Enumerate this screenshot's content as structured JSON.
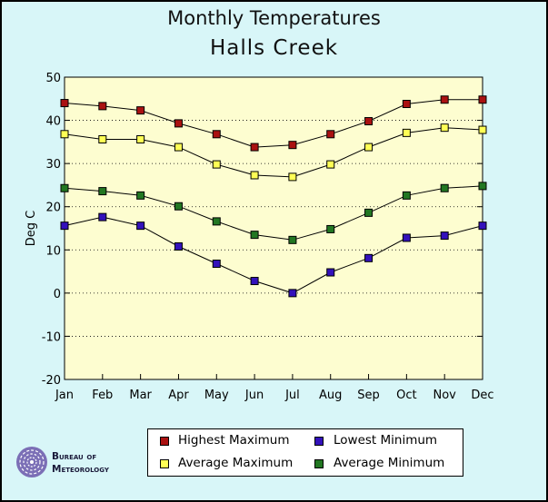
{
  "header": {
    "title": "Monthly Temperatures",
    "subtitle": "Halls Creek"
  },
  "chart_data": {
    "type": "line",
    "title": "Monthly Temperatures",
    "subtitle": "Halls Creek",
    "xlabel": "",
    "ylabel": "Deg C",
    "categories": [
      "Jan",
      "Feb",
      "Mar",
      "Apr",
      "May",
      "Jun",
      "Jul",
      "Aug",
      "Sep",
      "Oct",
      "Nov",
      "Dec"
    ],
    "ylim": [
      -20,
      50
    ],
    "yticks": [
      -20,
      -10,
      0,
      10,
      20,
      30,
      40,
      50
    ],
    "grid": true,
    "legend_position": "bottom",
    "series": [
      {
        "name": "Highest Maximum",
        "color": "#aa1111",
        "values": [
          44.0,
          43.3,
          42.3,
          39.3,
          36.8,
          33.8,
          34.3,
          36.8,
          39.8,
          43.8,
          44.8,
          44.8
        ]
      },
      {
        "name": "Average Maximum",
        "color": "#ffff55",
        "values": [
          36.8,
          35.6,
          35.6,
          33.8,
          29.8,
          27.3,
          26.9,
          29.8,
          33.8,
          37.1,
          38.3,
          37.8
        ]
      },
      {
        "name": "Average Minimum",
        "color": "#227722",
        "values": [
          24.3,
          23.6,
          22.6,
          20.1,
          16.6,
          13.5,
          12.3,
          14.8,
          18.6,
          22.6,
          24.3,
          24.8
        ]
      },
      {
        "name": "Lowest Minimum",
        "color": "#3311bb",
        "values": [
          15.6,
          17.6,
          15.6,
          10.8,
          6.8,
          2.8,
          0.0,
          4.8,
          8.1,
          12.8,
          13.3,
          15.6
        ]
      }
    ]
  },
  "legend": {
    "items": [
      {
        "label": "Highest Maximum",
        "color": "#aa1111"
      },
      {
        "label": "Lowest Minimum",
        "color": "#3311bb"
      },
      {
        "label": "Average Maximum",
        "color": "#ffff55"
      },
      {
        "label": "Average Minimum",
        "color": "#227722"
      }
    ]
  },
  "logo": {
    "line1": "Bureau of",
    "line2": "Meteorology",
    "icon": "bureau-swirl-icon"
  }
}
